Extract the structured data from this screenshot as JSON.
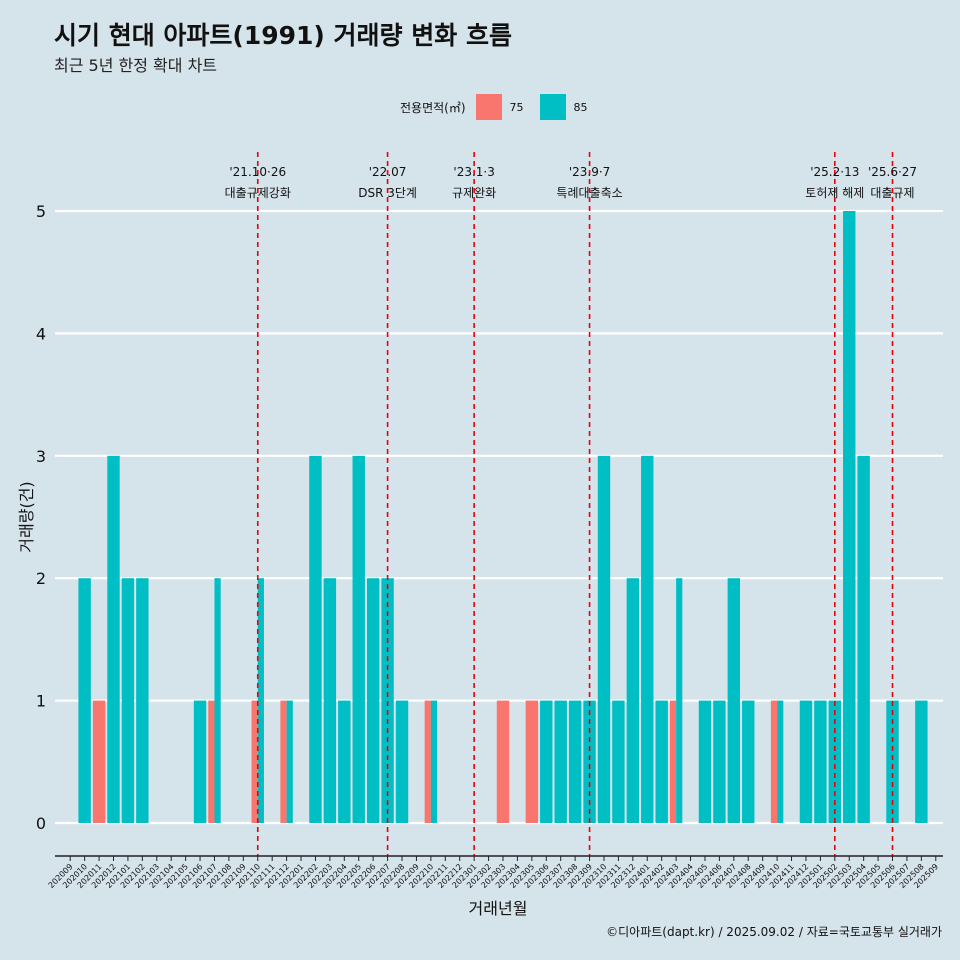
{
  "title": "시기 현대 아파트(1991) 거래량 변화 흐름",
  "subtitle": "최근 5년 한정 확대 차트",
  "caption": "©디아파트(dapt.kr) / 2025.09.02 / 자료=국토교통부 실거래가",
  "colors": {
    "background": "#d5e3ea",
    "s75": "#f8766d",
    "s85": "#00bfc4",
    "event_line": "#e8000b",
    "grid": "#ffffff"
  },
  "chart_data": {
    "type": "bar",
    "xlabel": "거래년월",
    "ylabel": "거래량(건)",
    "ylim": [
      0,
      5
    ],
    "yticks": [
      0,
      1,
      2,
      3,
      4,
      5
    ],
    "legend": {
      "title": "전용면적(㎡)",
      "placement": "top"
    },
    "categories": [
      "202009",
      "202010",
      "202011",
      "202012",
      "202101",
      "202102",
      "202103",
      "202104",
      "202105",
      "202106",
      "202107",
      "202108",
      "202109",
      "202110",
      "202111",
      "202112",
      "202201",
      "202202",
      "202203",
      "202204",
      "202205",
      "202206",
      "202207",
      "202208",
      "202209",
      "202210",
      "202211",
      "202212",
      "202301",
      "202302",
      "202303",
      "202304",
      "202305",
      "202306",
      "202307",
      "202308",
      "202309",
      "202310",
      "202311",
      "202312",
      "202401",
      "202402",
      "202403",
      "202404",
      "202405",
      "202406",
      "202407",
      "202408",
      "202409",
      "202410",
      "202411",
      "202412",
      "202501",
      "202502",
      "202503",
      "202504",
      "202505",
      "202506",
      "202507",
      "202508",
      "202509"
    ],
    "series": [
      {
        "name": "75",
        "color": "#f8766d",
        "values": [
          0,
          0,
          1,
          0,
          0,
          0,
          0,
          0,
          0,
          0,
          1,
          0,
          0,
          1,
          0,
          1,
          0,
          0,
          0,
          0,
          0,
          0,
          0,
          0,
          0,
          1,
          0,
          0,
          0,
          0,
          1,
          0,
          1,
          0,
          0,
          0,
          0,
          0,
          0,
          0,
          0,
          0,
          1,
          0,
          0,
          0,
          0,
          0,
          0,
          1,
          0,
          0,
          0,
          0,
          0,
          0,
          0,
          0,
          0,
          0,
          0
        ]
      },
      {
        "name": "85",
        "color": "#00bfc4",
        "values": [
          0,
          2,
          0,
          3,
          2,
          2,
          0,
          0,
          0,
          1,
          2,
          0,
          0,
          2,
          0,
          1,
          0,
          3,
          2,
          1,
          3,
          2,
          2,
          1,
          0,
          1,
          0,
          0,
          0,
          0,
          0,
          0,
          0,
          1,
          1,
          1,
          1,
          3,
          1,
          2,
          3,
          1,
          2,
          0,
          1,
          1,
          2,
          1,
          0,
          1,
          0,
          1,
          1,
          1,
          5,
          3,
          0,
          1,
          0,
          1,
          0
        ]
      }
    ],
    "events": [
      {
        "month": "202110",
        "date": "'21.10·26",
        "label": "대출규제강화"
      },
      {
        "month": "202207",
        "date": "'22.07",
        "label": "DSR 3단계"
      },
      {
        "month": "202301",
        "date": "'23.1·3",
        "label": "규제완화"
      },
      {
        "month": "202309",
        "date": "'23.9·7",
        "label": "특례대출축소"
      },
      {
        "month": "202502",
        "date": "'25.2·13",
        "label": "토허제 해제"
      },
      {
        "month": "202506",
        "date": "'25.6·27",
        "label": "대출규제"
      }
    ]
  }
}
